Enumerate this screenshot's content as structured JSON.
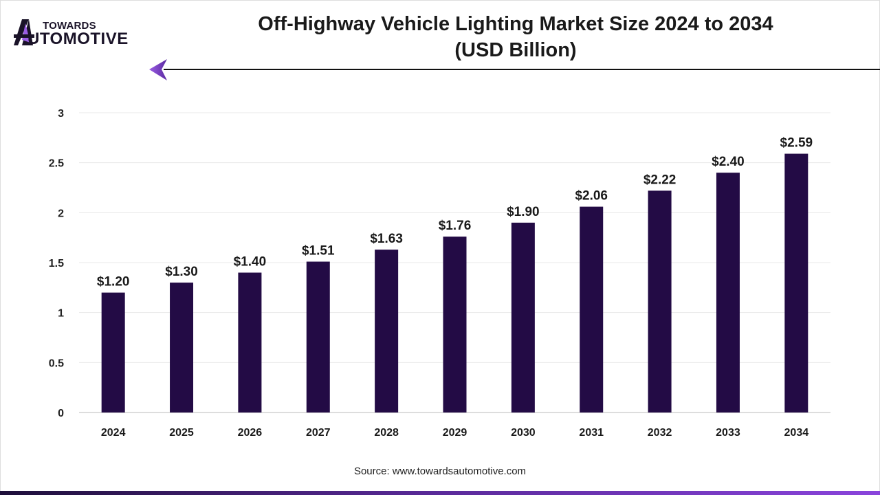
{
  "logo": {
    "top": "TOWARDS",
    "bottom": "UTOMOTIVE",
    "full": "TOWARDS AUTOMOTIVE"
  },
  "source": "Source: www.towardsautomotive.com",
  "colors": {
    "bar": "#230b45",
    "accent": "#7b3fd0",
    "grid": "#e8e8e8"
  },
  "chart_data": {
    "type": "bar",
    "title": "Off-Highway Vehicle Lighting Market Size 2024 to 2034",
    "subtitle": "(USD Billion)",
    "categories": [
      "2024",
      "2025",
      "2026",
      "2027",
      "2028",
      "2029",
      "2030",
      "2031",
      "2032",
      "2033",
      "2034"
    ],
    "values": [
      1.2,
      1.3,
      1.4,
      1.51,
      1.63,
      1.76,
      1.9,
      2.06,
      2.22,
      2.4,
      2.59
    ],
    "data_labels": [
      "$1.20",
      "$1.30",
      "$1.40",
      "$1.51",
      "$1.63",
      "$1.76",
      "$1.90",
      "$2.06",
      "$2.22",
      "$2.40",
      "$2.59"
    ],
    "yticks": [
      "0",
      "0.5",
      "1",
      "1.5",
      "2",
      "2.5",
      "3"
    ],
    "ylim": [
      0,
      3
    ],
    "grid": true,
    "legend": "none"
  }
}
